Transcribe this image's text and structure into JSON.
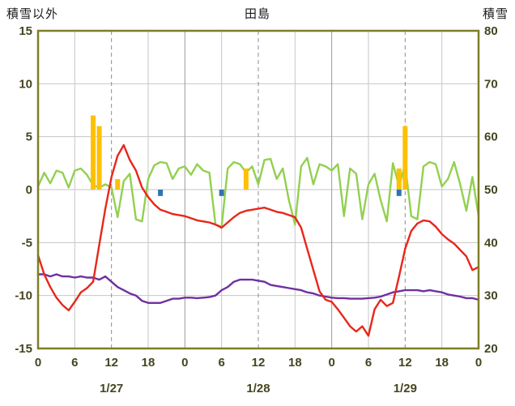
{
  "chart_data": {
    "type": "combo",
    "title": "田島",
    "x_hours_total": 72,
    "x_tick_step": 6,
    "x_tick_labels": [
      "0",
      "6",
      "12",
      "18",
      "0",
      "6",
      "12",
      "18",
      "0",
      "6",
      "12",
      "18",
      "0"
    ],
    "day_labels": [
      {
        "label": "1/27",
        "hour": 12
      },
      {
        "label": "1/28",
        "hour": 36
      },
      {
        "label": "1/29",
        "hour": 60
      }
    ],
    "left_axis": {
      "title": "積雪以外",
      "min": -15,
      "max": 15,
      "ticks": [
        15,
        10,
        5,
        0,
        -5,
        -10,
        -15
      ]
    },
    "right_axis": {
      "title": "積雪",
      "min": 20,
      "max": 80,
      "ticks": [
        80,
        70,
        60,
        50,
        40,
        30,
        20
      ]
    },
    "grid": {
      "horizontal": true,
      "vertical_step_hours": 6,
      "noon_lines_dashed": true
    },
    "legend": "none",
    "series": [
      {
        "name": "green-line",
        "type": "line",
        "axis": "left",
        "color": "#92d050",
        "values": [
          0.3,
          1.6,
          0.6,
          1.8,
          1.6,
          0.2,
          1.8,
          2.0,
          1.4,
          0.4,
          0.2,
          0.5,
          0.2,
          -2.6,
          0.8,
          1.5,
          -2.8,
          -3.0,
          1.0,
          2.3,
          2.6,
          2.5,
          1.0,
          2.0,
          2.2,
          1.4,
          2.4,
          1.8,
          1.6,
          -3.3,
          -3.5,
          2.0,
          2.6,
          2.4,
          1.6,
          2.2,
          0.5,
          2.8,
          2.9,
          1.0,
          2.0,
          -1.0,
          -3.3,
          2.2,
          3.0,
          0.5,
          2.4,
          2.2,
          1.8,
          2.4,
          -2.5,
          2.0,
          1.5,
          -2.8,
          0.5,
          1.5,
          -1.0,
          -3.0,
          2.5,
          0.3,
          2.4,
          -2.5,
          -2.8,
          2.2,
          2.6,
          2.4,
          0.3,
          1.0,
          2.6,
          0.5,
          -2.0,
          1.2,
          -2.5
        ]
      },
      {
        "name": "purple-line",
        "type": "line",
        "axis": "right",
        "color": "#7030a0",
        "values": [
          34.0,
          34.0,
          33.6,
          34.0,
          33.6,
          33.6,
          33.4,
          33.6,
          33.4,
          33.4,
          33.0,
          33.6,
          32.6,
          31.6,
          31.0,
          30.4,
          30.0,
          29.0,
          28.6,
          28.6,
          28.6,
          29.0,
          29.4,
          29.4,
          29.6,
          29.6,
          29.5,
          29.6,
          29.7,
          30.0,
          31.0,
          31.6,
          32.6,
          33.0,
          33.0,
          33.0,
          32.8,
          32.6,
          32.0,
          31.8,
          31.6,
          31.4,
          31.2,
          31.0,
          30.6,
          30.4,
          30.0,
          29.8,
          29.6,
          29.5,
          29.5,
          29.4,
          29.4,
          29.4,
          29.5,
          29.6,
          29.8,
          30.2,
          30.6,
          30.8,
          31.0,
          31.0,
          31.0,
          30.8,
          31.0,
          30.8,
          30.6,
          30.2,
          30.0,
          29.8,
          29.5,
          29.5,
          29.2
        ]
      },
      {
        "name": "red-line",
        "type": "line",
        "axis": "left",
        "color": "#e8261a",
        "values": [
          -6.2,
          -8.0,
          -9.2,
          -10.2,
          -10.9,
          -11.4,
          -10.6,
          -9.7,
          -9.3,
          -8.7,
          -5.2,
          -1.8,
          1.2,
          3.2,
          4.2,
          2.8,
          1.8,
          0.2,
          -0.7,
          -1.4,
          -1.9,
          -2.1,
          -2.3,
          -2.4,
          -2.5,
          -2.7,
          -2.9,
          -3.0,
          -3.1,
          -3.3,
          -3.6,
          -3.1,
          -2.6,
          -2.2,
          -2.0,
          -1.9,
          -1.8,
          -1.7,
          -1.9,
          -2.1,
          -2.2,
          -2.4,
          -2.6,
          -3.6,
          -5.6,
          -7.6,
          -9.6,
          -10.4,
          -10.6,
          -11.3,
          -12.1,
          -12.9,
          -13.4,
          -12.9,
          -13.8,
          -11.3,
          -10.4,
          -11.0,
          -10.7,
          -8.2,
          -5.6,
          -3.9,
          -3.2,
          -2.9,
          -3.0,
          -3.5,
          -4.2,
          -4.7,
          -5.1,
          -5.7,
          -6.3,
          -7.6,
          -7.3
        ]
      },
      {
        "name": "orange-bars",
        "type": "bar",
        "axis": "left",
        "color": "#ffc000",
        "points": [
          {
            "hour": 9,
            "value": 7.0
          },
          {
            "hour": 10,
            "value": 6.0
          },
          {
            "hour": 13,
            "value": 1.0
          },
          {
            "hour": 34,
            "value": 2.0
          },
          {
            "hour": 59,
            "value": 2.0
          },
          {
            "hour": 60,
            "value": 6.0
          }
        ]
      },
      {
        "name": "blue-bars",
        "type": "bar",
        "axis": "left",
        "color": "#2e74b5",
        "points": [
          {
            "hour": 20,
            "value": -0.6
          },
          {
            "hour": 30,
            "value": -0.6
          },
          {
            "hour": 59,
            "value": -0.6
          }
        ]
      }
    ]
  },
  "colors": {
    "frame": "#7e7e26",
    "grid": "#c6c6c6",
    "grid_day_boundary": "#9a9a9a",
    "grid_noon_dashed": "#8c8c8c",
    "tick_text": "#454520",
    "header_text": "#1a1a1a"
  }
}
